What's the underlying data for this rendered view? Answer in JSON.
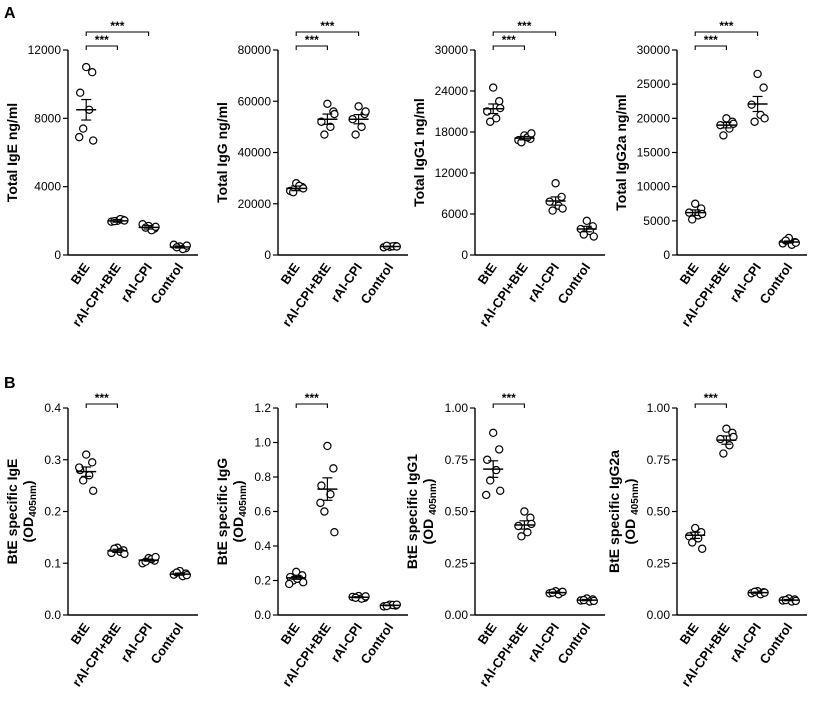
{
  "figure": {
    "panel_labels": [
      "A",
      "B"
    ],
    "categories": [
      "BtE",
      "rAl-CPI+BtE",
      "rAl-CPI",
      "Control"
    ]
  },
  "chart_data": [
    {
      "id": "A1",
      "row": 0,
      "col": 0,
      "type": "scatter",
      "ylabel": "Total IgE ng/ml",
      "ylim": [
        0,
        12000
      ],
      "yticks": [
        0,
        4000,
        8000,
        12000
      ],
      "ytick_labels": [
        "0",
        "4000",
        "8000",
        "12000"
      ],
      "categories": [
        "BtE",
        "rAl-CPI+BtE",
        "rAl-CPI",
        "Control"
      ],
      "groups": [
        {
          "points": [
            11000,
            10700,
            9500,
            8500,
            7400,
            6700,
            6900
          ],
          "mean": 8500,
          "sem": 600
        },
        {
          "points": [
            2000,
            2050,
            1950,
            2100,
            1980,
            2020
          ],
          "mean": 2000,
          "sem": 80
        },
        {
          "points": [
            1700,
            1550,
            1800,
            1450,
            1600,
            1650
          ],
          "mean": 1620,
          "sem": 100
        },
        {
          "points": [
            500,
            400,
            600,
            350,
            450,
            550
          ],
          "mean": 470,
          "sem": 60
        }
      ],
      "significance": [
        {
          "from": 0,
          "to": 1,
          "label": "***"
        },
        {
          "from": 0,
          "to": 2,
          "label": "***"
        }
      ]
    },
    {
      "id": "A2",
      "row": 0,
      "col": 1,
      "type": "scatter",
      "ylabel": "Total IgG ng/ml",
      "ylim": [
        0,
        80000
      ],
      "yticks": [
        0,
        20000,
        40000,
        60000,
        80000
      ],
      "ytick_labels": [
        "0",
        "20000",
        "40000",
        "60000",
        "80000"
      ],
      "categories": [
        "BtE",
        "rAl-CPI+BtE",
        "rAl-CPI",
        "Control"
      ],
      "groups": [
        {
          "points": [
            28000,
            26500,
            25000,
            27000,
            24500,
            26000
          ],
          "mean": 26000,
          "sem": 900
        },
        {
          "points": [
            59000,
            56000,
            52000,
            50000,
            47000,
            55000
          ],
          "mean": 53000,
          "sem": 2000
        },
        {
          "points": [
            58000,
            55000,
            53000,
            50000,
            47000,
            56000
          ],
          "mean": 53000,
          "sem": 1800
        },
        {
          "points": [
            3200,
            3500,
            3000,
            3400,
            3600,
            3300
          ],
          "mean": 3300,
          "sem": 100
        }
      ],
      "significance": [
        {
          "from": 0,
          "to": 1,
          "label": "***"
        },
        {
          "from": 0,
          "to": 2,
          "label": "***"
        }
      ]
    },
    {
      "id": "A3",
      "row": 0,
      "col": 2,
      "type": "scatter",
      "ylabel": "Total IgG1 ng/ml",
      "ylim": [
        0,
        30000
      ],
      "yticks": [
        0,
        6000,
        12000,
        18000,
        24000,
        30000
      ],
      "ytick_labels": [
        "0",
        "6000",
        "12000",
        "18000",
        "24000",
        "30000"
      ],
      "categories": [
        "BtE",
        "rAl-CPI+BtE",
        "rAl-CPI",
        "Control"
      ],
      "groups": [
        {
          "points": [
            24500,
            22500,
            21000,
            20000,
            19500,
            21500
          ],
          "mean": 21400,
          "sem": 700
        },
        {
          "points": [
            17500,
            17000,
            16800,
            17200,
            16500,
            17800
          ],
          "mean": 17100,
          "sem": 250
        },
        {
          "points": [
            10500,
            8500,
            7800,
            7200,
            6500,
            6800
          ],
          "mean": 7900,
          "sem": 600
        },
        {
          "points": [
            5000,
            4200,
            3800,
            3500,
            3000,
            2700
          ],
          "mean": 3800,
          "sem": 400
        }
      ],
      "significance": [
        {
          "from": 0,
          "to": 1,
          "label": "***"
        },
        {
          "from": 0,
          "to": 2,
          "label": "***"
        }
      ]
    },
    {
      "id": "A4",
      "row": 0,
      "col": 3,
      "type": "scatter",
      "ylabel": "Total IgG2a ng/ml",
      "ylim": [
        0,
        30000
      ],
      "yticks": [
        0,
        5000,
        10000,
        15000,
        20000,
        25000,
        30000
      ],
      "ytick_labels": [
        "0",
        "5000",
        "10000",
        "15000",
        "20000",
        "25000",
        "30000"
      ],
      "categories": [
        "BtE",
        "rAl-CPI+BtE",
        "rAl-CPI",
        "Control"
      ],
      "groups": [
        {
          "points": [
            7500,
            6800,
            6200,
            5800,
            5200,
            6000
          ],
          "mean": 6200,
          "sem": 400
        },
        {
          "points": [
            20000,
            19500,
            19000,
            18500,
            17500,
            19200
          ],
          "mean": 19000,
          "sem": 400
        },
        {
          "points": [
            26500,
            24500,
            22000,
            20500,
            19500,
            20000
          ],
          "mean": 22100,
          "sem": 1100
        },
        {
          "points": [
            2500,
            1900,
            1700,
            1500,
            2100,
            1800
          ],
          "mean": 1900,
          "sem": 150
        }
      ],
      "significance": [
        {
          "from": 0,
          "to": 1,
          "label": "***"
        },
        {
          "from": 0,
          "to": 2,
          "label": "***"
        }
      ]
    },
    {
      "id": "B1",
      "row": 1,
      "col": 0,
      "type": "scatter",
      "ylabel_main": "BtE specific IgE",
      "ylabel_sub": "(OD",
      "ylabel_subscript": "405nm",
      "ylabel_end": ")",
      "ylim": [
        0,
        0.4
      ],
      "yticks": [
        0,
        0.1,
        0.2,
        0.3,
        0.4
      ],
      "ytick_labels": [
        "0.0",
        "0.1",
        "0.2",
        "0.3",
        "0.4"
      ],
      "categories": [
        "BtE",
        "rAl-CPI+BtE",
        "rAl-CPI",
        "Control"
      ],
      "groups": [
        {
          "points": [
            0.31,
            0.295,
            0.28,
            0.27,
            0.26,
            0.24,
            0.285
          ],
          "mean": 0.277,
          "sem": 0.009
        },
        {
          "points": [
            0.13,
            0.125,
            0.12,
            0.122,
            0.128,
            0.118
          ],
          "mean": 0.124,
          "sem": 0.003
        },
        {
          "points": [
            0.11,
            0.105,
            0.1,
            0.108,
            0.103,
            0.112
          ],
          "mean": 0.106,
          "sem": 0.002
        },
        {
          "points": [
            0.085,
            0.08,
            0.078,
            0.075,
            0.082,
            0.077
          ],
          "mean": 0.079,
          "sem": 0.002
        }
      ],
      "significance": [
        {
          "from": 0,
          "to": 1,
          "label": "***"
        }
      ]
    },
    {
      "id": "B2",
      "row": 1,
      "col": 1,
      "type": "scatter",
      "ylabel_main": "BtE specific IgG",
      "ylabel_sub": "(OD",
      "ylabel_subscript": "405nm",
      "ylabel_end": ")",
      "ylim": [
        0,
        1.2
      ],
      "yticks": [
        0,
        0.2,
        0.4,
        0.6,
        0.8,
        1.0,
        1.2
      ],
      "ytick_labels": [
        "0.0",
        "0.2",
        "0.4",
        "0.6",
        "0.8",
        "1.0",
        "1.2"
      ],
      "categories": [
        "BtE",
        "rAl-CPI+BtE",
        "rAl-CPI",
        "Control"
      ],
      "groups": [
        {
          "points": [
            0.25,
            0.23,
            0.22,
            0.21,
            0.2,
            0.19,
            0.18,
            0.21
          ],
          "mean": 0.215,
          "sem": 0.008
        },
        {
          "points": [
            0.98,
            0.85,
            0.75,
            0.7,
            0.6,
            0.48,
            0.65
          ],
          "mean": 0.73,
          "sem": 0.065
        },
        {
          "points": [
            0.11,
            0.1,
            0.105,
            0.095,
            0.1,
            0.108
          ],
          "mean": 0.103,
          "sem": 0.003
        },
        {
          "points": [
            0.06,
            0.055,
            0.05,
            0.058,
            0.052,
            0.06
          ],
          "mean": 0.056,
          "sem": 0.002
        }
      ],
      "significance": [
        {
          "from": 0,
          "to": 1,
          "label": "***"
        }
      ]
    },
    {
      "id": "B3",
      "row": 1,
      "col": 2,
      "type": "scatter",
      "ylabel_main": "BtE specific IgG1",
      "ylabel_sub": "(OD ",
      "ylabel_subscript": "405nm",
      "ylabel_end": ")",
      "ylim": [
        0,
        1.0
      ],
      "yticks": [
        0,
        0.25,
        0.5,
        0.75,
        1.0
      ],
      "ytick_labels": [
        "0.00",
        "0.25",
        "0.50",
        "0.75",
        "1.00"
      ],
      "categories": [
        "BtE",
        "rAl-CPI+BtE",
        "rAl-CPI",
        "Control"
      ],
      "groups": [
        {
          "points": [
            0.88,
            0.8,
            0.75,
            0.7,
            0.65,
            0.6,
            0.58
          ],
          "mean": 0.705,
          "sem": 0.04
        },
        {
          "points": [
            0.5,
            0.47,
            0.43,
            0.4,
            0.38,
            0.44
          ],
          "mean": 0.435,
          "sem": 0.02
        },
        {
          "points": [
            0.115,
            0.11,
            0.105,
            0.1,
            0.108,
            0.112
          ],
          "mean": 0.108,
          "sem": 0.003
        },
        {
          "points": [
            0.08,
            0.075,
            0.07,
            0.065,
            0.072,
            0.068
          ],
          "mean": 0.072,
          "sem": 0.003
        }
      ],
      "significance": [
        {
          "from": 0,
          "to": 1,
          "label": "***"
        }
      ]
    },
    {
      "id": "B4",
      "row": 1,
      "col": 3,
      "type": "scatter",
      "ylabel_main": "BtE specific IgG2a",
      "ylabel_sub": "(OD ",
      "ylabel_subscript": "405nm",
      "ylabel_end": ")",
      "ylim": [
        0,
        1.0
      ],
      "yticks": [
        0,
        0.25,
        0.5,
        0.75,
        1.0
      ],
      "ytick_labels": [
        "0.00",
        "0.25",
        "0.50",
        "0.75",
        "1.00"
      ],
      "categories": [
        "BtE",
        "rAl-CPI+BtE",
        "rAl-CPI",
        "Control"
      ],
      "groups": [
        {
          "points": [
            0.42,
            0.4,
            0.38,
            0.37,
            0.35,
            0.32
          ],
          "mean": 0.385,
          "sem": 0.015
        },
        {
          "points": [
            0.9,
            0.88,
            0.85,
            0.82,
            0.78,
            0.86
          ],
          "mean": 0.845,
          "sem": 0.02
        },
        {
          "points": [
            0.115,
            0.11,
            0.105,
            0.1,
            0.112,
            0.108
          ],
          "mean": 0.108,
          "sem": 0.003
        },
        {
          "points": [
            0.08,
            0.075,
            0.07,
            0.065,
            0.072,
            0.068
          ],
          "mean": 0.072,
          "sem": 0.003
        }
      ],
      "significance": [
        {
          "from": 0,
          "to": 1,
          "label": "***"
        }
      ]
    }
  ]
}
